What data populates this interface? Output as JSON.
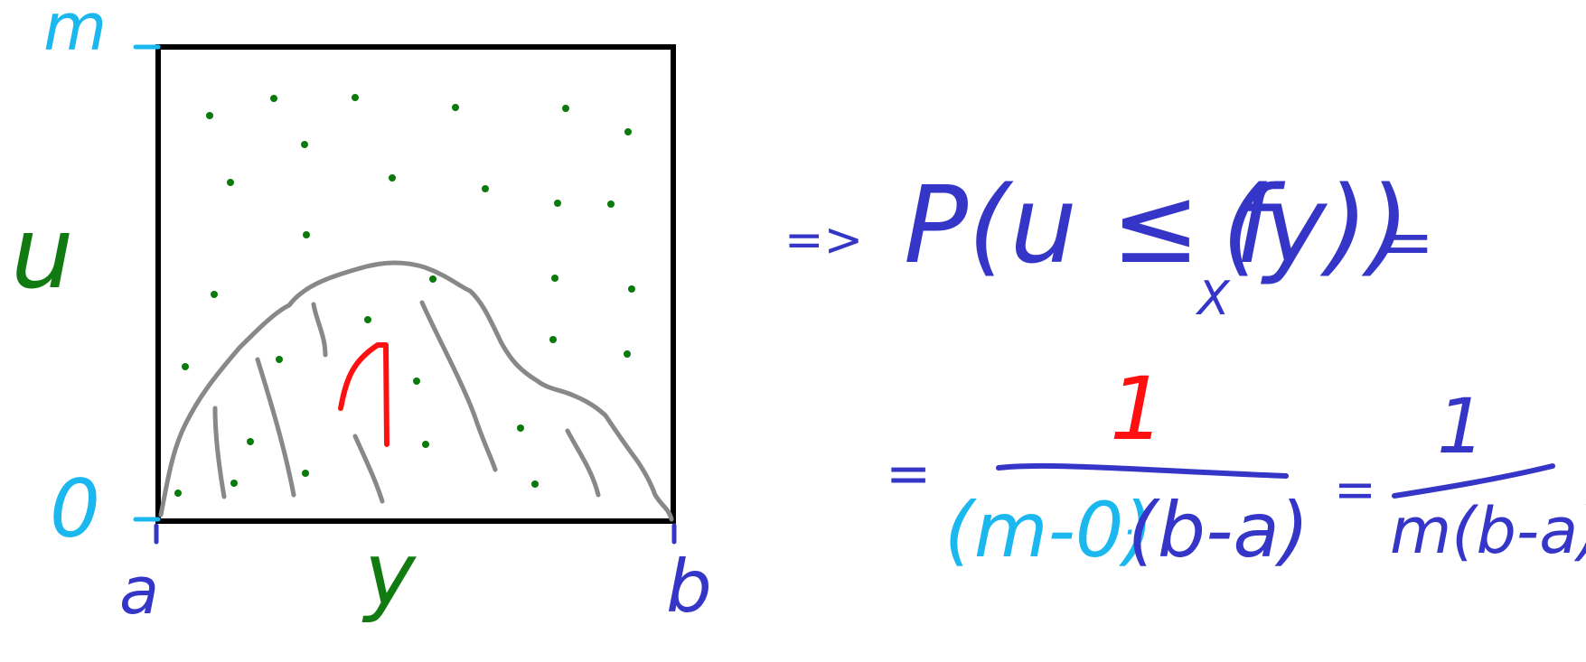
{
  "colors": {
    "box": "#000000",
    "hill": "#808080",
    "points": "#0a7a0a",
    "label_cyan": "#1ab8ef",
    "label_blue": "#3535c8",
    "label_green": "#117a11",
    "one_red": "#ff1010"
  },
  "axis_labels": {
    "m_top": "m",
    "zero_bottom": "0",
    "u_side": "u",
    "a_left": "a",
    "y_center": "y",
    "b_right": "b"
  },
  "density_label": "1",
  "formula": {
    "line1_implies": "=>",
    "line1_prob": "P(u ≤ f",
    "line1_sub": "X",
    "line1_arg": "(y))",
    "line1_eq": "=",
    "line2_eq_lead": "=",
    "frac1_numerator": "1",
    "frac1_den_part1": "(m-0)",
    "frac1_den_dot": "·",
    "frac1_den_part2": "(b-a)",
    "line2_eq_mid": "=",
    "frac2_numerator": "1",
    "frac2_denominator": "m(b-a)"
  }
}
